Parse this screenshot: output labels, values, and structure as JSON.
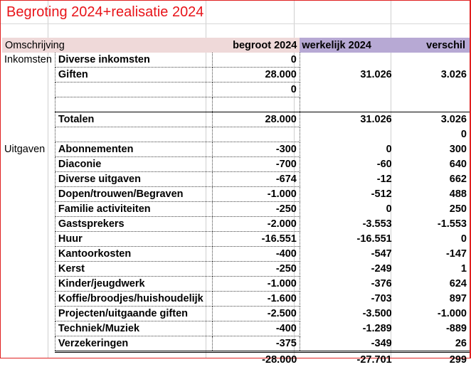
{
  "title": "Begroting 2024+realisatie 2024",
  "colors": {
    "title": "#e8141a",
    "header_pink": "#efd9d9",
    "header_purple": "#b7a9d4",
    "frame": "#e02020"
  },
  "header": {
    "omschrijving": "Omschrijving",
    "begroot": "begroot 2024",
    "werkelijk": "werkelijk 2024",
    "verschil": "verschil"
  },
  "inkomsten": {
    "category": "Inkomsten",
    "rows": [
      {
        "label": "Diverse inkomsten",
        "begroot": "0",
        "werkelijk": "",
        "verschil": ""
      },
      {
        "label": "Giften",
        "begroot": "28.000",
        "werkelijk": "31.026",
        "verschil": "3.026"
      },
      {
        "label": "",
        "begroot": "0",
        "werkelijk": "",
        "verschil": ""
      }
    ],
    "totals": {
      "label": "Totalen",
      "begroot": "28.000",
      "werkelijk": "31.026",
      "verschil": "3.026"
    },
    "extra_verschil": "0"
  },
  "uitgaven": {
    "category": "Uitgaven",
    "rows": [
      {
        "label": "Abonnementen",
        "begroot": "-300",
        "werkelijk": "0",
        "verschil": "300"
      },
      {
        "label": "Diaconie",
        "begroot": "-700",
        "werkelijk": "-60",
        "verschil": "640"
      },
      {
        "label": "Diverse uitgaven",
        "begroot": "-674",
        "werkelijk": "-12",
        "verschil": "662"
      },
      {
        "label": "Dopen/trouwen/Begraven",
        "begroot": "-1.000",
        "werkelijk": "-512",
        "verschil": "488"
      },
      {
        "label": "Familie activiteiten",
        "begroot": "-250",
        "werkelijk": "0",
        "verschil": "250"
      },
      {
        "label": "Gastsprekers",
        "begroot": "-2.000",
        "werkelijk": "-3.553",
        "verschil": "-1.553"
      },
      {
        "label": "Huur",
        "begroot": "-16.551",
        "werkelijk": "-16.551",
        "verschil": "0"
      },
      {
        "label": "Kantoorkosten",
        "begroot": "-400",
        "werkelijk": "-547",
        "verschil": "-147"
      },
      {
        "label": "Kerst",
        "begroot": "-250",
        "werkelijk": "-249",
        "verschil": "1"
      },
      {
        "label": "Kinder/jeugdwerk",
        "begroot": "-1.000",
        "werkelijk": "-376",
        "verschil": "624"
      },
      {
        "label": "Koffie/broodjes/huishoudelijk",
        "begroot": "-1.600",
        "werkelijk": "-703",
        "verschil": "897"
      },
      {
        "label": "Projecten/uitgaande giften",
        "begroot": "-2.500",
        "werkelijk": "-3.500",
        "verschil": "-1.000"
      },
      {
        "label": "Techniek/Muziek",
        "begroot": "-400",
        "werkelijk": "-1.289",
        "verschil": "-889"
      },
      {
        "label": "Verzekeringen",
        "begroot": "-375",
        "werkelijk": "-349",
        "verschil": "26"
      }
    ],
    "totals": {
      "begroot": "-28.000",
      "werkelijk": "-27.701",
      "verschil": "299"
    }
  }
}
